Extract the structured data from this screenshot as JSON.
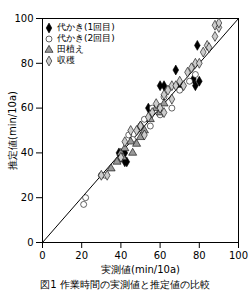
{
  "chart_data": {
    "type": "scatter",
    "title": "図1 作業時間の実測値と推定値の比較",
    "x_label": "実測値(min/10a)",
    "y_label": "推定値(min/10a)",
    "xlim": [
      0,
      100
    ],
    "ylim": [
      0,
      100
    ],
    "xticks": [
      0,
      20,
      40,
      60,
      80,
      100
    ],
    "yticks": [
      0,
      20,
      40,
      60,
      80,
      100
    ],
    "legend": "upper left",
    "series": [
      {
        "name": "代かき(1回目)",
        "color": "#000000",
        "marker": "diamond",
        "x": [
          79,
          80,
          77,
          78,
          68,
          70,
          62,
          60,
          54,
          50,
          42,
          42,
          40,
          39,
          43
        ],
        "values": [
          88,
          72,
          73,
          70,
          77,
          70,
          70,
          70,
          60,
          52,
          40,
          36,
          38,
          40,
          36
        ]
      },
      {
        "name": "代かき(2回目)",
        "color": "#ffffff",
        "marker": "circle",
        "x": [
          22,
          21,
          30,
          32,
          44,
          46,
          50,
          52,
          56,
          60,
          62,
          66,
          70,
          75,
          78,
          55
        ],
        "values": [
          20,
          17,
          30,
          30,
          48,
          46,
          52,
          55,
          60,
          57,
          65,
          60,
          68,
          72,
          75,
          52
        ]
      },
      {
        "name": "田植え",
        "color": "#999999",
        "marker": "triangle",
        "x": [
          40,
          41,
          42,
          45,
          46,
          48,
          50,
          52,
          55,
          58,
          62,
          60,
          35,
          38
        ],
        "values": [
          40,
          38,
          42,
          45,
          40,
          44,
          47,
          50,
          55,
          60,
          62,
          58,
          33,
          36
        ]
      },
      {
        "name": "収穫",
        "color": "#cccccc",
        "marker": "diamond",
        "x": [
          30,
          33,
          40,
          42,
          45,
          48,
          50,
          52,
          54,
          56,
          58,
          60,
          62,
          64,
          66,
          68,
          70,
          72,
          74,
          76,
          78,
          80,
          82,
          84,
          88,
          88,
          90,
          90,
          85,
          62,
          66
        ],
        "values": [
          30,
          30,
          38,
          45,
          50,
          50,
          52,
          48,
          56,
          58,
          62,
          60,
          66,
          68,
          70,
          70,
          72,
          70,
          76,
          78,
          80,
          80,
          85,
          88,
          92,
          97,
          96,
          98,
          87,
          58,
          64
        ]
      }
    ]
  }
}
